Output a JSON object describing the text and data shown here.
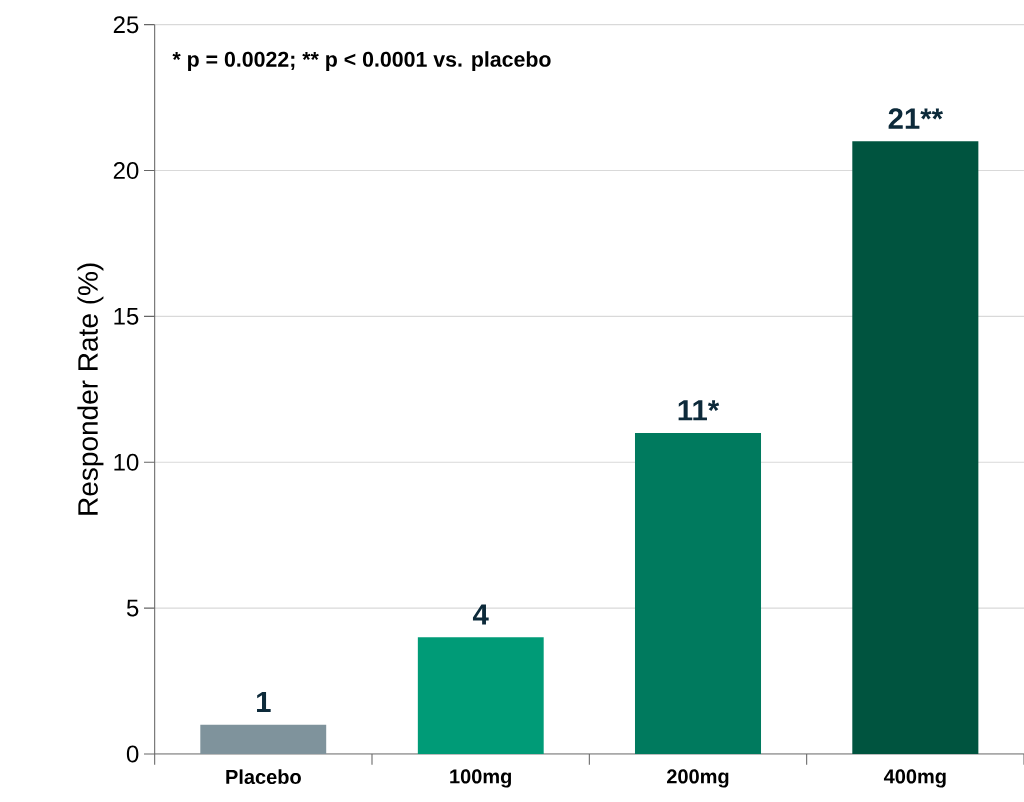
{
  "chart_data": {
    "type": "bar",
    "ylabel": "Responder Rate (%)",
    "categories": [
      "Placebo",
      "100mg",
      "200mg",
      "400mg"
    ],
    "values": [
      1,
      4,
      11,
      21
    ],
    "colors": [
      "#7f939c",
      "#009b77",
      "#007a5e",
      "#00543f"
    ],
    "value_labels": [
      "1",
      "4",
      "11*",
      "21**"
    ],
    "annotations": [
      "* p = 0.0022; ** p < 0.0001 vs. placebo"
    ],
    "ylim": [
      0,
      25
    ],
    "yticks": [
      0,
      5,
      10,
      15,
      20,
      25
    ],
    "grid": "y"
  }
}
